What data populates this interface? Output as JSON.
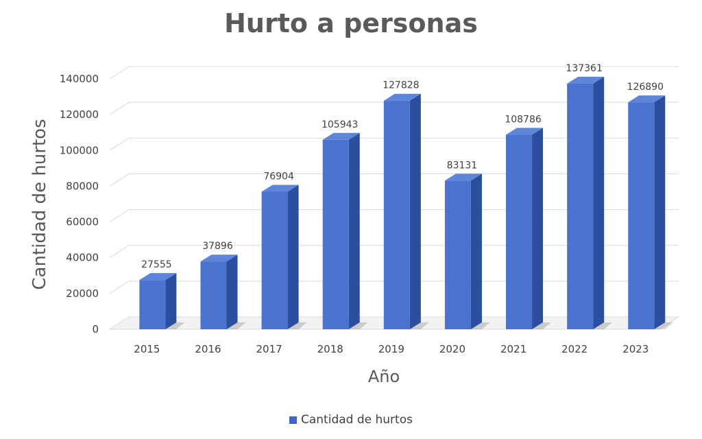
{
  "chart_data": {
    "type": "bar",
    "title": "Hurto a personas",
    "xlabel": "Año",
    "ylabel": "Cantidad de hurtos",
    "categories": [
      "2015",
      "2016",
      "2017",
      "2018",
      "2019",
      "2020",
      "2021",
      "2022",
      "2023"
    ],
    "series": [
      {
        "name": "Cantidad de hurtos",
        "values": [
          27555,
          37896,
          76904,
          105943,
          127828,
          83131,
          108786,
          137361,
          126890
        ],
        "labels": [
          "27555",
          "37896",
          "76904",
          "105943",
          "127828",
          "83131",
          "108786",
          "137361",
          "126890"
        ]
      }
    ],
    "yticks": [
      0,
      20000,
      40000,
      60000,
      80000,
      100000,
      120000,
      140000
    ],
    "ylim": [
      0,
      140000
    ],
    "grid": true,
    "legend_position": "bottom",
    "colors": {
      "bar_front": "#4a72cf",
      "bar_side": "#2b4e9f",
      "bar_top": "#5d86da",
      "gridline": "#d9d9d9",
      "text": "#404040",
      "title": "#5a5a5a"
    }
  }
}
